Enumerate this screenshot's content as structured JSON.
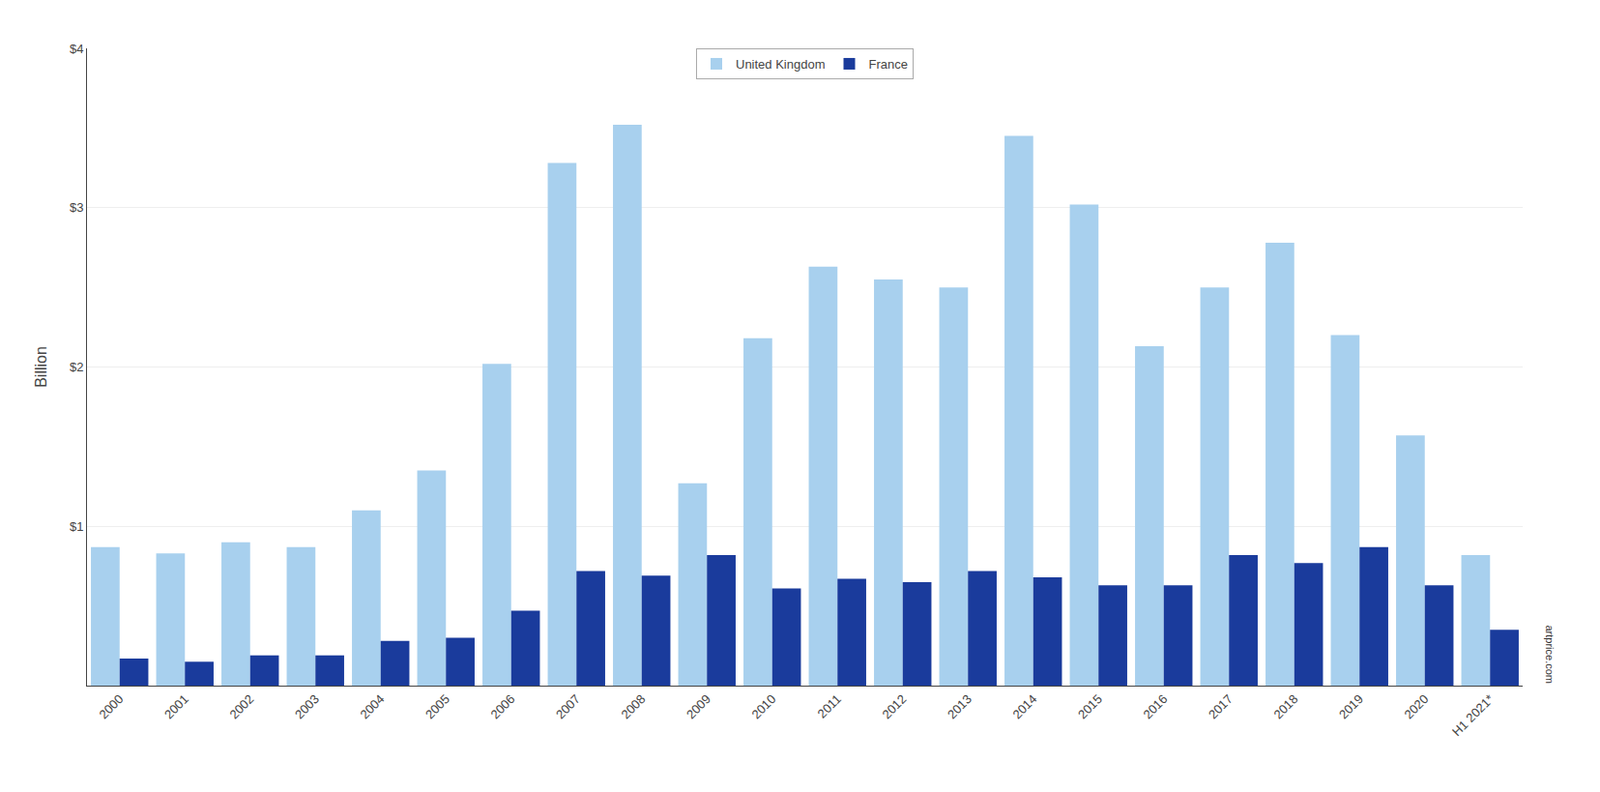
{
  "chart_data": {
    "type": "bar",
    "categories": [
      "2000",
      "2001",
      "2002",
      "2003",
      "2004",
      "2005",
      "2006",
      "2007",
      "2008",
      "2009",
      "2010",
      "2011",
      "2012",
      "2013",
      "2014",
      "2015",
      "2016",
      "2017",
      "2018",
      "2019",
      "2020",
      "H1 2021*"
    ],
    "series": [
      {
        "name": "United Kingdom",
        "color": "#a8d0ee",
        "values": [
          0.87,
          0.83,
          0.9,
          0.87,
          1.1,
          1.35,
          2.02,
          3.28,
          3.52,
          1.27,
          2.18,
          2.63,
          2.55,
          2.5,
          3.45,
          3.02,
          2.13,
          2.5,
          2.78,
          2.2,
          1.57,
          0.82
        ]
      },
      {
        "name": "France",
        "color": "#1a3b9c",
        "values": [
          0.17,
          0.15,
          0.19,
          0.19,
          0.28,
          0.3,
          0.47,
          0.72,
          0.69,
          0.82,
          0.61,
          0.67,
          0.65,
          0.72,
          0.68,
          0.63,
          0.63,
          0.82,
          0.77,
          0.87,
          0.63,
          0.35
        ]
      }
    ],
    "ylabel": "Billion",
    "ylim": [
      0,
      4.0
    ],
    "yticks": [
      {
        "value": 1,
        "label": "$1"
      },
      {
        "value": 2,
        "label": "$2"
      },
      {
        "value": 3,
        "label": "$3"
      },
      {
        "value": 4,
        "label": "$4"
      }
    ],
    "grid": true,
    "legend": "upper center",
    "annotations": [
      "artprice.com"
    ]
  }
}
